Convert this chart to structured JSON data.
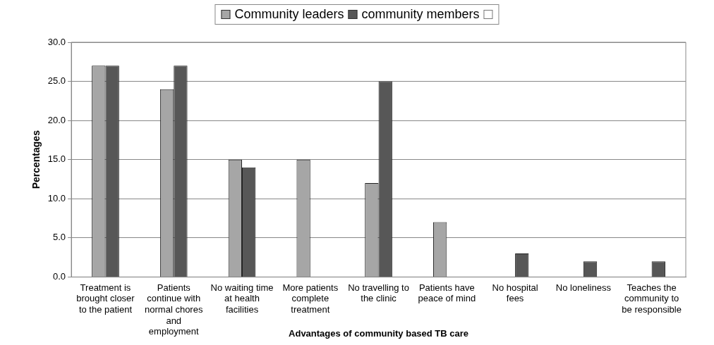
{
  "chart_data": {
    "type": "bar",
    "xlabel": "Advantages of community based TB care",
    "ylabel": "Percentages",
    "categories": [
      "Treatment is brought closer to the patient",
      "Patients continue with normal chores and employment",
      "No waiting time  at health facilities",
      "More patients complete treatment",
      "No travelling to the clinic",
      "Patients have peace of mind",
      "No hospital fees",
      "No loneliness",
      "Teaches the community to be responsible"
    ],
    "series": [
      {
        "name": "Community leaders",
        "color": "#a6a6a6",
        "values": [
          27,
          24,
          15,
          15,
          12,
          7,
          0,
          0,
          0
        ]
      },
      {
        "name": "community members",
        "color": "#575757",
        "values": [
          27,
          27,
          14,
          0,
          25,
          0,
          3,
          2,
          2
        ]
      }
    ],
    "ylim": [
      0,
      30
    ],
    "yticks": [
      {
        "value": 0,
        "label": "0.0"
      },
      {
        "value": 5,
        "label": "5.0"
      },
      {
        "value": 10,
        "label": "10.0"
      },
      {
        "value": 15,
        "label": "15.0"
      },
      {
        "value": 20,
        "label": "20.0"
      },
      {
        "value": 25,
        "label": "25.0"
      },
      {
        "value": 30,
        "label": "30.0"
      }
    ],
    "grid": "y",
    "legend": "top"
  }
}
